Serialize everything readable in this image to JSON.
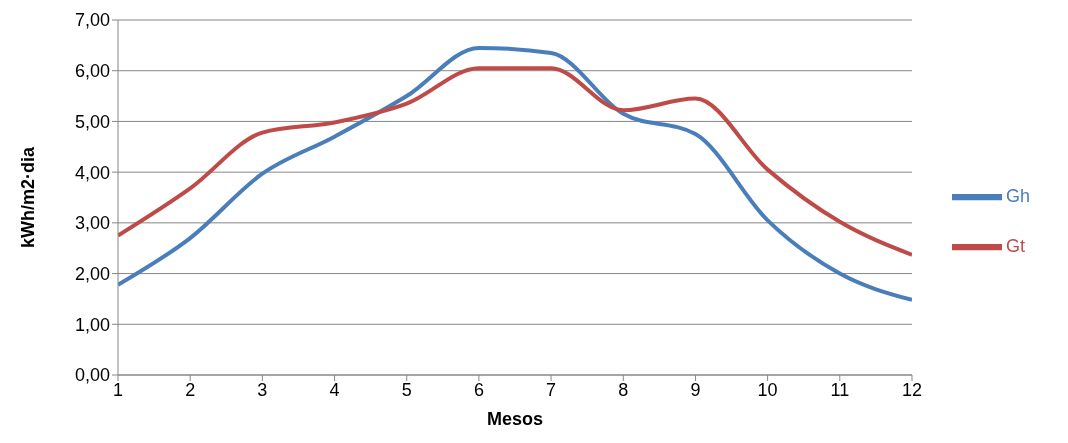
{
  "chart_data": {
    "type": "line",
    "xlabel": "Mesos",
    "ylabel": "kWh/m2·dia",
    "x": [
      1,
      2,
      3,
      4,
      5,
      6,
      7,
      8,
      9,
      10,
      11,
      12
    ],
    "series": [
      {
        "name": "Gh",
        "color": "#4a7ebb",
        "values": [
          1.78,
          2.7,
          3.97,
          4.7,
          5.5,
          6.45,
          6.35,
          5.15,
          4.75,
          3.05,
          2.0,
          1.48
        ]
      },
      {
        "name": "Gt",
        "color": "#be4b48",
        "values": [
          2.75,
          3.68,
          4.78,
          4.98,
          5.35,
          6.05,
          6.05,
          5.22,
          5.45,
          4.05,
          3.02,
          2.37
        ]
      }
    ],
    "xlim": [
      1,
      12
    ],
    "xticks": [
      1,
      2,
      3,
      4,
      5,
      6,
      7,
      8,
      9,
      10,
      11,
      12
    ],
    "ylim": [
      0,
      7
    ],
    "yticks": [
      {
        "value": 0,
        "label": "0,00"
      },
      {
        "value": 1,
        "label": "1,00"
      },
      {
        "value": 2,
        "label": "2,00"
      },
      {
        "value": 3,
        "label": "3,00"
      },
      {
        "value": 4,
        "label": "4,00"
      },
      {
        "value": 5,
        "label": "5,00"
      },
      {
        "value": 6,
        "label": "6,00"
      },
      {
        "value": 7,
        "label": "7,00"
      }
    ],
    "grid": "y",
    "legend": "right",
    "marker": "none",
    "line_style": "solid"
  }
}
